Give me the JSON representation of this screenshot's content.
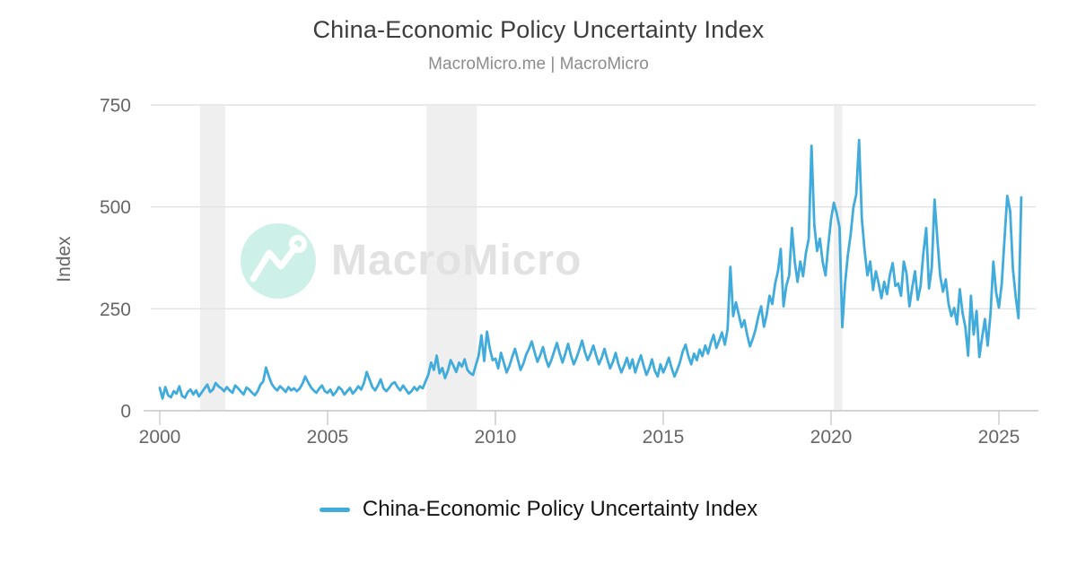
{
  "header": {
    "title": "China-Economic Policy Uncertainty Index",
    "subtitle": "MacroMicro.me | MacroMicro"
  },
  "watermark": {
    "text": "MacroMicro",
    "badge_color": "#cdf1e8"
  },
  "legend": {
    "label": "China-Economic Policy Uncertainty Index",
    "swatch_color": "#41acdb"
  },
  "axes": {
    "y_title": "Index",
    "y_ticks": [
      "0",
      "250",
      "500",
      "750"
    ],
    "x_ticks": [
      "2000",
      "2005",
      "2010",
      "2015",
      "2020",
      "2025"
    ]
  },
  "colors": {
    "line": "#41acdb",
    "grid": "#e2e2e2",
    "band": "#efefef",
    "axis": "#c9c9c9",
    "tick_text": "#666666"
  },
  "chart_data": {
    "type": "line",
    "title": "China-Economic Policy Uncertainty Index",
    "subtitle": "MacroMicro.me | MacroMicro",
    "xlabel": "",
    "ylabel": "Index",
    "ylim": [
      0,
      750
    ],
    "yticks": [
      0,
      250,
      500,
      750
    ],
    "xticks": [
      2000,
      2005,
      2010,
      2015,
      2020,
      2025
    ],
    "grid": true,
    "legend_position": "bottom",
    "x_unit": "monthly",
    "start": {
      "year": 2000,
      "month": 1
    },
    "recession_bands": [
      [
        2001.2,
        2001.95
      ],
      [
        2007.95,
        2009.45
      ],
      [
        2020.08,
        2020.33
      ]
    ],
    "series": [
      {
        "name": "China-Economic Policy Uncertainty Index",
        "color": "#41acdb",
        "values": [
          56,
          30,
          58,
          38,
          33,
          48,
          42,
          60,
          36,
          32,
          46,
          52,
          40,
          50,
          35,
          45,
          55,
          64,
          46,
          52,
          68,
          60,
          55,
          48,
          58,
          50,
          44,
          62,
          55,
          47,
          40,
          57,
          52,
          44,
          38,
          48,
          64,
          72,
          106,
          84,
          66,
          56,
          50,
          60,
          54,
          46,
          58,
          50,
          55,
          48,
          54,
          66,
          84,
          70,
          58,
          50,
          44,
          54,
          62,
          48,
          44,
          52,
          38,
          46,
          58,
          52,
          40,
          48,
          56,
          42,
          50,
          60,
          52,
          68,
          95,
          76,
          58,
          50,
          62,
          77,
          55,
          48,
          56,
          66,
          70,
          58,
          50,
          62,
          52,
          42,
          48,
          58,
          50,
          60,
          55,
          72,
          88,
          118,
          100,
          135,
          92,
          105,
          80,
          98,
          124,
          110,
          95,
          118,
          108,
          126,
          100,
          92,
          88,
          112,
          135,
          185,
          122,
          194,
          152,
          124,
          128,
          104,
          142,
          118,
          94,
          110,
          132,
          152,
          126,
          100,
          116,
          138,
          152,
          170,
          144,
          120,
          136,
          156,
          128,
          108,
          124,
          146,
          166,
          140,
          118,
          140,
          164,
          136,
          114,
          130,
          150,
          172,
          144,
          124,
          140,
          160,
          136,
          114,
          130,
          152,
          126,
          104,
          120,
          142,
          114,
          94,
          110,
          130,
          104,
          126,
          94,
          116,
          136,
          110,
          88,
          104,
          126,
          98,
          84,
          114,
          94,
          110,
          130,
          104,
          84,
          100,
          120,
          146,
          162,
          134,
          114,
          140,
          124,
          150,
          134,
          160,
          140,
          166,
          186,
          154,
          172,
          192,
          162,
          200,
          353,
          232,
          266,
          236,
          205,
          222,
          186,
          158,
          176,
          200,
          232,
          256,
          206,
          236,
          282,
          262,
          312,
          342,
          397,
          256,
          306,
          332,
          448,
          366,
          316,
          366,
          330,
          386,
          422,
          650,
          456,
          392,
          422,
          366,
          332,
          406,
          470,
          510,
          485,
          450,
          205,
          312,
          382,
          432,
          499,
          530,
          664,
          470,
          392,
          332,
          366,
          296,
          342,
          312,
          276,
          316,
          286,
          332,
          362,
          306,
          312,
          282,
          366,
          336,
          256,
          302,
          342,
          272,
          306,
          386,
          448,
          300,
          352,
          518,
          422,
          332,
          292,
          322,
          262,
          232,
          252,
          212,
          298,
          240,
          205,
          135,
          282,
          187,
          245,
          132,
          180,
          225,
          160,
          240,
          366,
          290,
          253,
          310,
          420,
          527,
          490,
          348,
          280,
          227,
          523
        ]
      }
    ]
  }
}
